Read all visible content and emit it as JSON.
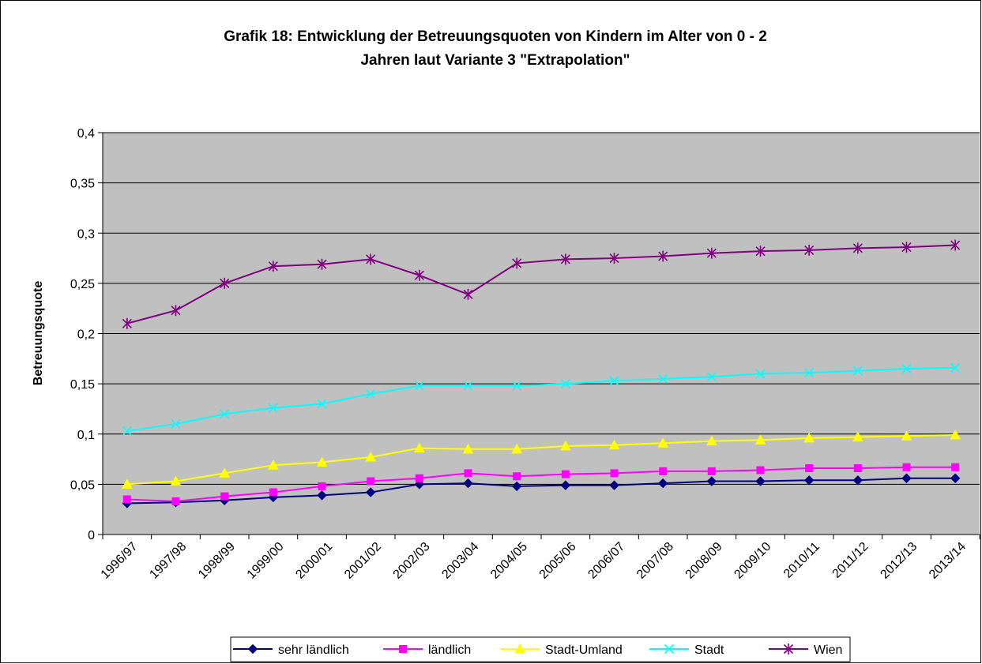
{
  "chart_data": {
    "type": "line",
    "title": [
      "Grafik 18: Entwicklung der Betreuungsquoten von Kindern im Alter von 0 - 2",
      "Jahren laut Variante 3 \"Extrapolation\""
    ],
    "y_label": "Betreuungsquote",
    "categories": [
      "1996/97",
      "1997/98",
      "1998/99",
      "1999/00",
      "2000/01",
      "2001/02",
      "2002/03",
      "2003/04",
      "2004/05",
      "2005/06",
      "2006/07",
      "2007/08",
      "2008/09",
      "2009/10",
      "2010/11",
      "2011/12",
      "2012/13",
      "2013/14"
    ],
    "series": [
      {
        "name": "sehr ländlich",
        "color": "#000080",
        "marker": "diamond",
        "values": [
          0.031,
          0.032,
          0.034,
          0.037,
          0.039,
          0.042,
          0.05,
          0.051,
          0.048,
          0.049,
          0.049,
          0.051,
          0.053,
          0.053,
          0.054,
          0.054,
          0.056,
          0.056
        ]
      },
      {
        "name": "ländlich",
        "color": "#ff00ff",
        "marker": "square",
        "values": [
          0.035,
          0.033,
          0.038,
          0.042,
          0.048,
          0.053,
          0.056,
          0.061,
          0.058,
          0.06,
          0.061,
          0.063,
          0.063,
          0.064,
          0.066,
          0.066,
          0.067,
          0.067
        ]
      },
      {
        "name": "Stadt-Umland",
        "color": "#ffff00",
        "marker": "triangle",
        "values": [
          0.05,
          0.053,
          0.061,
          0.069,
          0.072,
          0.077,
          0.086,
          0.085,
          0.085,
          0.088,
          0.089,
          0.091,
          0.093,
          0.094,
          0.096,
          0.097,
          0.098,
          0.099
        ]
      },
      {
        "name": "Stadt",
        "color": "#00ffff",
        "marker": "x",
        "values": [
          0.103,
          0.11,
          0.12,
          0.126,
          0.13,
          0.14,
          0.148,
          0.148,
          0.148,
          0.15,
          0.153,
          0.155,
          0.157,
          0.16,
          0.161,
          0.163,
          0.165,
          0.166
        ]
      },
      {
        "name": "Wien",
        "color": "#800080",
        "marker": "star",
        "values": [
          0.21,
          0.223,
          0.25,
          0.267,
          0.269,
          0.274,
          0.258,
          0.239,
          0.27,
          0.274,
          0.275,
          0.277,
          0.28,
          0.282,
          0.283,
          0.285,
          0.286,
          0.288
        ]
      }
    ],
    "ylim": [
      0,
      0.4
    ],
    "yticks": [
      0,
      {
        "value": 0.05,
        "label": "0,05"
      },
      {
        "value": 0.1,
        "label": "0,1"
      },
      {
        "value": 0.15,
        "label": "0,15"
      },
      {
        "value": 0.2,
        "label": "0,2"
      },
      {
        "value": 0.25,
        "label": "0,25"
      },
      {
        "value": 0.3,
        "label": "0,3"
      },
      {
        "value": 0.35,
        "label": "0,35"
      },
      {
        "value": 0.4,
        "label": "0,4"
      }
    ],
    "grid": true,
    "plot_background": "#c0c0c0",
    "legend": "bottom"
  }
}
